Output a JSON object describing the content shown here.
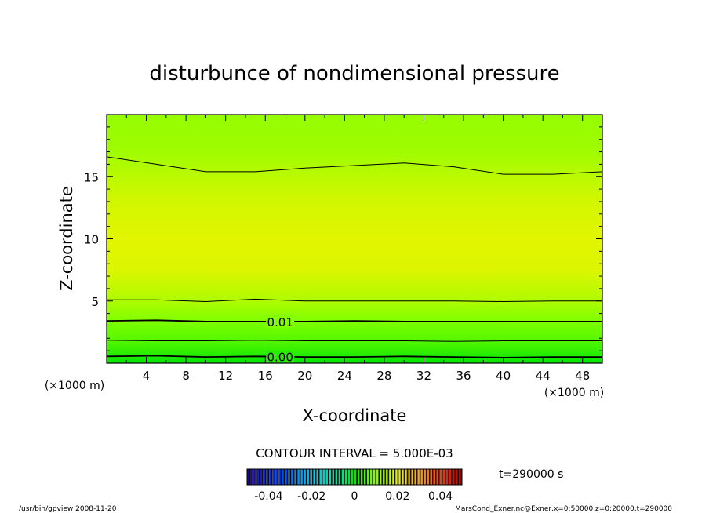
{
  "chart_data": {
    "type": "heatmap",
    "title": "disturbunce of nondimensional pressure",
    "xlabel": "X-coordinate",
    "ylabel": "Z-coordinate",
    "x_unit": "(×1000 m)",
    "y_unit": "(×1000 m)",
    "xlim": [
      0,
      50
    ],
    "ylim": [
      0,
      20
    ],
    "x_ticks": [
      "4",
      "8",
      "12",
      "16",
      "20",
      "24",
      "28",
      "32",
      "36",
      "40",
      "44",
      "48"
    ],
    "y_ticks": [
      "5",
      "10",
      "15"
    ],
    "contour_labels": [
      "0.01",
      "0.00"
    ],
    "contour_interval": "CONTOUR INTERVAL = 5.000E-03",
    "time_label": "t=290000 s",
    "colorbar_ticks": [
      "-0.04",
      "-0.02",
      "0",
      "0.02",
      "0.04"
    ],
    "colorbar_range": [
      -0.05,
      0.05
    ],
    "field_profile": [
      {
        "z": 0,
        "value": 0.0
      },
      {
        "z": 1,
        "value": 0.004
      },
      {
        "z": 2,
        "value": 0.007
      },
      {
        "z": 3.5,
        "value": 0.01
      },
      {
        "z": 5,
        "value": 0.0145
      },
      {
        "z": 7.5,
        "value": 0.019
      },
      {
        "z": 10,
        "value": 0.0195
      },
      {
        "z": 13,
        "value": 0.018
      },
      {
        "z": 15.5,
        "value": 0.015
      },
      {
        "z": 17,
        "value": 0.013
      },
      {
        "z": 20,
        "value": 0.012
      }
    ],
    "contours": [
      {
        "level": 0.0,
        "z": [
          0.55,
          0.6,
          0.5,
          0.55,
          0.5,
          0.5,
          0.55,
          0.5,
          0.45,
          0.5,
          0.5
        ]
      },
      {
        "level": 0.005,
        "z": [
          1.85,
          1.8,
          1.8,
          1.85,
          1.8,
          1.8,
          1.8,
          1.75,
          1.8,
          1.8,
          1.8
        ]
      },
      {
        "level": 0.01,
        "z": [
          3.4,
          3.45,
          3.35,
          3.35,
          3.35,
          3.4,
          3.35,
          3.35,
          3.35,
          3.35,
          3.35
        ]
      },
      {
        "level": 0.015,
        "z": [
          5.1,
          5.1,
          4.95,
          5.15,
          5.0,
          5.0,
          5.0,
          5.0,
          4.95,
          5.0,
          5.0
        ]
      },
      {
        "level": 0.015,
        "z": [
          16.6,
          16.0,
          15.4,
          15.4,
          15.7,
          15.9,
          16.1,
          15.8,
          15.2,
          15.2,
          15.4
        ]
      }
    ]
  },
  "footer": {
    "left": "/usr/bin/gpview  2008-11-20",
    "right": "MarsCond_Exner.nc@Exner,x=0:50000,z=0:20000,t=290000"
  },
  "colors": {
    "background": "#ffffff",
    "frame": "#000000"
  }
}
